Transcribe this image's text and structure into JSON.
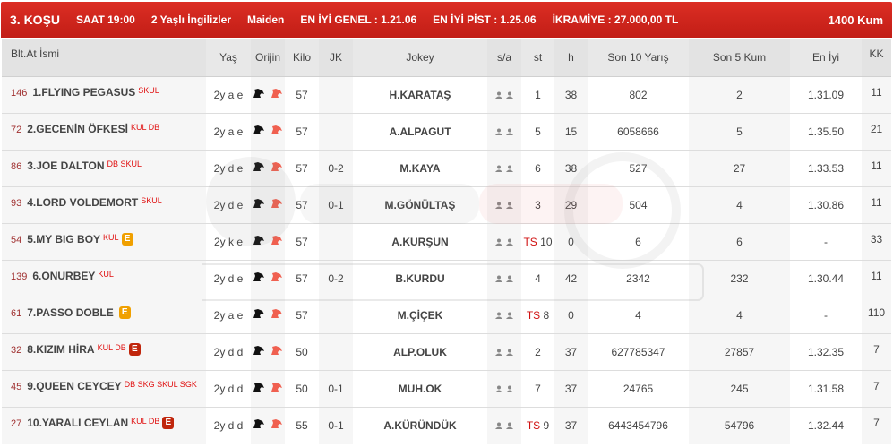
{
  "race": {
    "title": "3. KOŞU",
    "time": "SAAT 19:00",
    "category": "2 Yaşlı İngilizler",
    "type": "Maiden",
    "best_general": "EN İYİ GENEL : 1.21.06",
    "best_track": "EN İYİ PİST : 1.25.06",
    "prize": "İKRAMİYE : 27.000,00 TL",
    "distance": "1400 Kum"
  },
  "columns": [
    "Blt.At İsmi",
    "Yaş",
    "Orijin",
    "Kilo",
    "JK",
    "Jokey",
    "s/a",
    "st",
    "h",
    "Son 10 Yarış",
    "Son 5 Kum",
    "En İyi",
    "KK"
  ],
  "colors": {
    "header_red": "#d42a20",
    "badge_orange": "#f0a000",
    "badge_red": "#c0260c",
    "tag_red": "#e01010"
  },
  "watermark": {
    "logo": "GanyanTime",
    "slogan": "AT YARIŞLARINDA TEK ADRES"
  },
  "rows": [
    {
      "blt": "146",
      "name": "1.FLYING PEGASUS",
      "tags": "SKUL",
      "badge": "",
      "badge_color": "",
      "age": "2y a e",
      "kilo": "57",
      "jk": "",
      "jockey": "H.KARATAŞ",
      "ts": "",
      "st": "1",
      "h": "38",
      "son10": "802",
      "son5": "2",
      "best": "1.31.09",
      "kk": "11"
    },
    {
      "blt": "72",
      "name": "2.GECENİN ÖFKESİ",
      "tags": "KUL DB",
      "badge": "",
      "badge_color": "",
      "age": "2y a e",
      "kilo": "57",
      "jk": "",
      "jockey": "A.ALPAGUT",
      "ts": "",
      "st": "5",
      "h": "15",
      "son10": "6058666",
      "son5": "5",
      "best": "1.35.50",
      "kk": "21"
    },
    {
      "blt": "86",
      "name": "3.JOE DALTON",
      "tags": "DB SKUL",
      "badge": "",
      "badge_color": "",
      "age": "2y d e",
      "kilo": "57",
      "jk": "0-2",
      "jockey": "M.KAYA",
      "ts": "",
      "st": "6",
      "h": "38",
      "son10": "527",
      "son5": "27",
      "best": "1.33.53",
      "kk": "11"
    },
    {
      "blt": "93",
      "name": "4.LORD VOLDEMORT",
      "tags": "SKUL",
      "badge": "",
      "badge_color": "",
      "age": "2y d e",
      "kilo": "57",
      "jk": "0-1",
      "jockey": "M.GÖNÜLTAŞ",
      "ts": "",
      "st": "3",
      "h": "29",
      "son10": "504",
      "son5": "4",
      "best": "1.30.86",
      "kk": "11"
    },
    {
      "blt": "54",
      "name": "5.MY BIG BOY",
      "tags": "KUL",
      "badge": "E",
      "badge_color": "#f0a000",
      "age": "2y k e",
      "kilo": "57",
      "jk": "",
      "jockey": "A.KURŞUN",
      "ts": "TS",
      "st": "10",
      "h": "0",
      "son10": "6",
      "son5": "6",
      "best": "-",
      "kk": "33"
    },
    {
      "blt": "139",
      "name": "6.ONURBEY",
      "tags": "KUL",
      "badge": "",
      "badge_color": "",
      "age": "2y d e",
      "kilo": "57",
      "jk": "0-2",
      "jockey": "B.KURDU",
      "ts": "",
      "st": "4",
      "h": "42",
      "son10": "2342",
      "son5": "232",
      "best": "1.30.44",
      "kk": "11"
    },
    {
      "blt": "61",
      "name": "7.PASSO DOBLE",
      "tags": "",
      "badge": "E",
      "badge_color": "#f0a000",
      "age": "2y a e",
      "kilo": "57",
      "jk": "",
      "jockey": "M.ÇİÇEK",
      "ts": "TS",
      "st": "8",
      "h": "0",
      "son10": "4",
      "son5": "4",
      "best": "-",
      "kk": "110"
    },
    {
      "blt": "32",
      "name": "8.KIZIM HİRA",
      "tags": "KUL DB",
      "badge": "E",
      "badge_color": "#c0260c",
      "age": "2y d d",
      "kilo": "50",
      "jk": "",
      "jockey": "ALP.OLUK",
      "ts": "",
      "st": "2",
      "h": "37",
      "son10": "627785347",
      "son5": "27857",
      "best": "1.32.35",
      "kk": "7"
    },
    {
      "blt": "45",
      "name": "9.QUEEN CEYCEY",
      "tags": "DB SKG SKUL SGK",
      "badge": "",
      "badge_color": "",
      "age": "2y d d",
      "kilo": "50",
      "jk": "0-1",
      "jockey": "MUH.OK",
      "ts": "",
      "st": "7",
      "h": "37",
      "son10": "24765",
      "son5": "245",
      "best": "1.31.58",
      "kk": "7"
    },
    {
      "blt": "27",
      "name": "10.YARALI CEYLAN",
      "tags": "KUL DB",
      "badge": "E",
      "badge_color": "#c0260c",
      "age": "2y d d",
      "kilo": "55",
      "jk": "0-1",
      "jockey": "A.KÜRÜNDÜK",
      "ts": "TS",
      "st": "9",
      "h": "37",
      "son10": "6443454796",
      "son5": "54796",
      "best": "1.32.44",
      "kk": "7"
    }
  ]
}
